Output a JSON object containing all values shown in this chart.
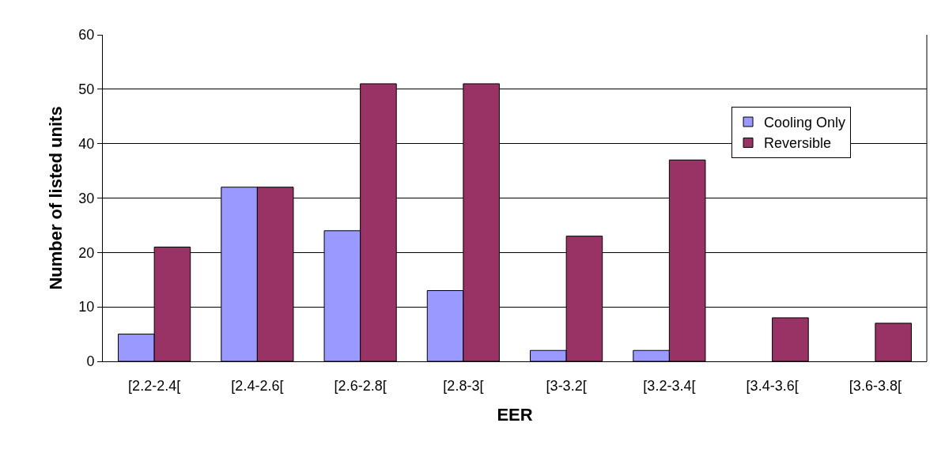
{
  "chart_data": {
    "type": "bar",
    "xlabel": "EER",
    "ylabel": "Number of listed units",
    "categories": [
      "[2.2-2.4[",
      "[2.4-2.6[",
      "[2.6-2.8[",
      "[2.8-3[",
      "[3-3.2[",
      "[3.2-3.4[",
      "[3.4-3.6[",
      "[3.6-3.8["
    ],
    "series": [
      {
        "name": "Cooling Only",
        "color": "#9999ff",
        "values": [
          5,
          32,
          24,
          13,
          2,
          2,
          null,
          null
        ]
      },
      {
        "name": "Reversible",
        "color": "#993366",
        "values": [
          21,
          32,
          51,
          51,
          23,
          37,
          8,
          7
        ]
      }
    ],
    "ylim": [
      0,
      60
    ],
    "yticks": [
      0,
      10,
      20,
      30,
      40,
      50,
      60
    ],
    "grid": "y",
    "legend": "top right"
  }
}
